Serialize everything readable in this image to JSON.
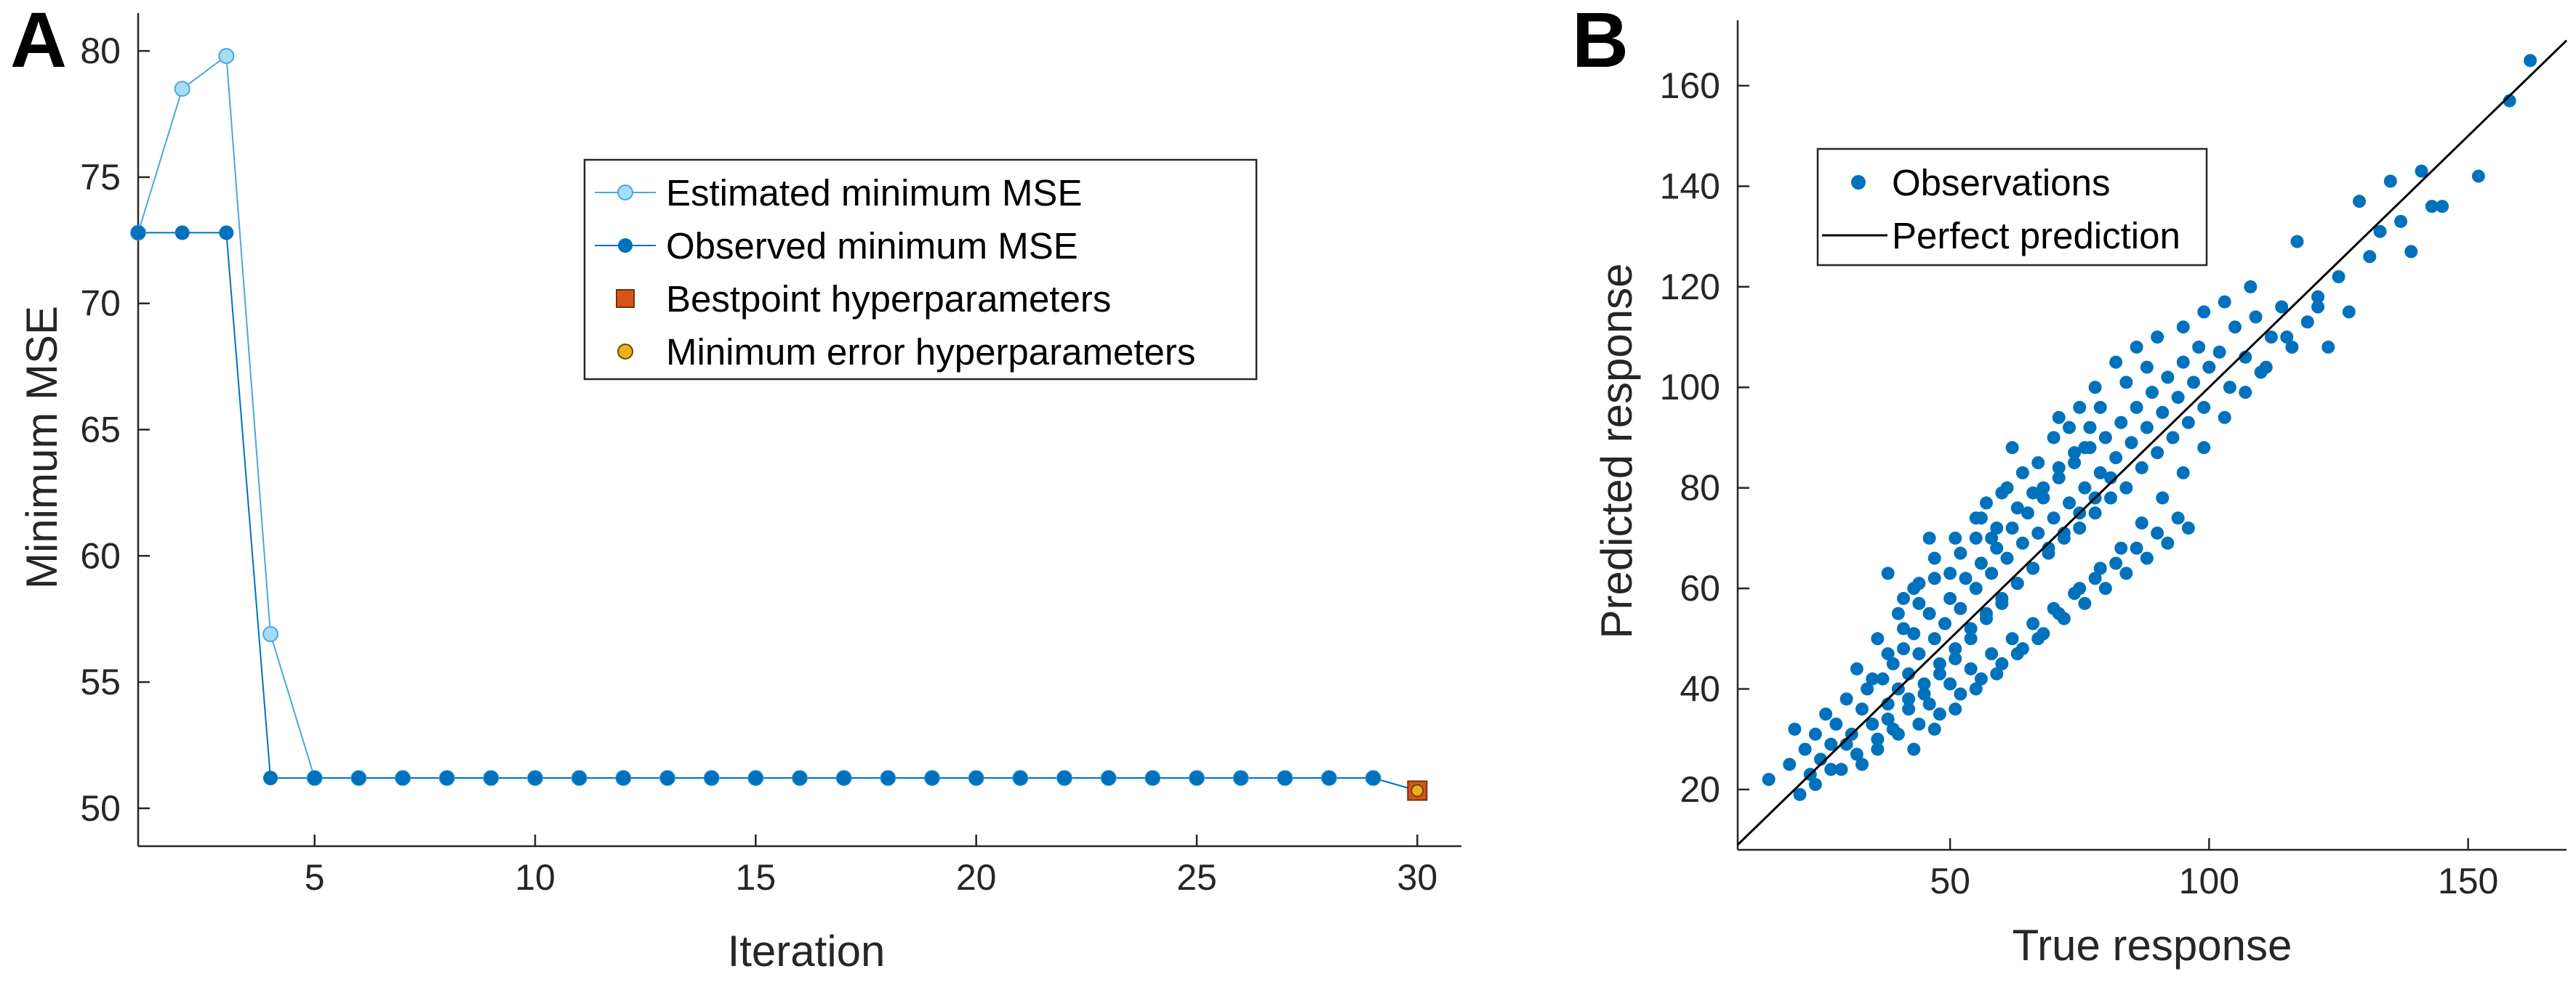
{
  "panels": {
    "a_label": "A",
    "b_label": "B"
  },
  "colors": {
    "estimated": "#a6dcf5",
    "estimated_edge": "#4aa8d8",
    "observed": "#0072bd",
    "bestpoint": "#d95319",
    "min_error": "#edb120",
    "perfect": "#000000"
  },
  "chart_data": [
    {
      "type": "line",
      "xlabel": "Iteration",
      "ylabel": "Minimum MSE",
      "xlim": [
        1,
        31
      ],
      "ylim": [
        48.5,
        81.5
      ],
      "xticks": [
        5,
        10,
        15,
        20,
        25,
        30
      ],
      "yticks": [
        50,
        55,
        60,
        65,
        70,
        75,
        80
      ],
      "grid": false,
      "legend_position": "upper-middle",
      "x": [
        1,
        2,
        3,
        4,
        5,
        6,
        7,
        8,
        9,
        10,
        11,
        12,
        13,
        14,
        15,
        16,
        17,
        18,
        19,
        20,
        21,
        22,
        23,
        24,
        25,
        26,
        27,
        28,
        29,
        30
      ],
      "series": [
        {
          "name": "Estimated minimum MSE",
          "values": [
            72.8,
            78.5,
            79.8,
            56.9,
            51.2,
            51.2,
            51.2,
            51.2,
            51.2,
            51.2,
            51.2,
            51.2,
            51.2,
            51.2,
            51.2,
            51.2,
            51.2,
            51.2,
            51.2,
            51.2,
            51.2,
            51.2,
            51.2,
            51.2,
            51.2,
            51.2,
            51.2,
            51.2,
            51.2,
            50.7
          ]
        },
        {
          "name": "Observed minimum MSE",
          "values": [
            72.8,
            72.8,
            72.8,
            51.2,
            51.2,
            51.2,
            51.2,
            51.2,
            51.2,
            51.2,
            51.2,
            51.2,
            51.2,
            51.2,
            51.2,
            51.2,
            51.2,
            51.2,
            51.2,
            51.2,
            51.2,
            51.2,
            51.2,
            51.2,
            51.2,
            51.2,
            51.2,
            51.2,
            51.2,
            50.7
          ]
        }
      ],
      "markers": [
        {
          "name": "Bestpoint hyperparameters",
          "x": 30,
          "y": 50.7
        },
        {
          "name": "Minimum error hyperparameters",
          "x": 30,
          "y": 50.7
        }
      ]
    },
    {
      "type": "scatter",
      "xlabel": "True response",
      "ylabel": "Predicted response",
      "xlim": [
        9,
        169
      ],
      "ylim": [
        8,
        173
      ],
      "xticks": [
        50,
        100,
        150
      ],
      "yticks": [
        20,
        40,
        60,
        80,
        100,
        120,
        140,
        160
      ],
      "grid": false,
      "legend_position": "upper-left",
      "series": [
        {
          "name": "Observations",
          "points": [
            [
              15,
              22
            ],
            [
              19,
              25
            ],
            [
              20,
              32
            ],
            [
              21,
              19
            ],
            [
              22,
              28
            ],
            [
              23,
              23
            ],
            [
              24,
              31
            ],
            [
              25,
              26
            ],
            [
              26,
              35
            ],
            [
              27,
              29
            ],
            [
              28,
              33
            ],
            [
              29,
              24
            ],
            [
              30,
              38
            ],
            [
              31,
              31
            ],
            [
              32,
              27
            ],
            [
              33,
              36
            ],
            [
              34,
              40
            ],
            [
              35,
              33
            ],
            [
              36,
              30
            ],
            [
              37,
              42
            ],
            [
              38,
              37
            ],
            [
              39,
              45
            ],
            [
              40,
              40
            ],
            [
              41,
              48
            ],
            [
              42,
              43
            ],
            [
              43,
              51
            ],
            [
              44,
              47
            ],
            [
              45,
              41
            ],
            [
              46,
              55
            ],
            [
              47,
              50
            ],
            [
              48,
              45
            ],
            [
              49,
              53
            ],
            [
              50,
              58
            ],
            [
              51,
              48
            ],
            [
              52,
              56
            ],
            [
              53,
              62
            ],
            [
              54,
              52
            ],
            [
              55,
              60
            ],
            [
              56,
              65
            ],
            [
              57,
              55
            ],
            [
              58,
              63
            ],
            [
              59,
              68
            ],
            [
              60,
              58
            ],
            [
              61,
              66
            ],
            [
              62,
              72
            ],
            [
              63,
              61
            ],
            [
              64,
              69
            ],
            [
              65,
              75
            ],
            [
              66,
              64
            ],
            [
              67,
              71
            ],
            [
              68,
              78
            ],
            [
              69,
              67
            ],
            [
              70,
              74
            ],
            [
              71,
              82
            ],
            [
              72,
              70
            ],
            [
              73,
              77
            ],
            [
              74,
              85
            ],
            [
              75,
              72
            ],
            [
              76,
              80
            ],
            [
              77,
              88
            ],
            [
              78,
              75
            ],
            [
              79,
              83
            ],
            [
              80,
              90
            ],
            [
              81,
              78
            ],
            [
              82,
              86
            ],
            [
              83,
              93
            ],
            [
              84,
              80
            ],
            [
              85,
              89
            ],
            [
              86,
              96
            ],
            [
              87,
              84
            ],
            [
              88,
              92
            ],
            [
              89,
              99
            ],
            [
              90,
              87
            ],
            [
              91,
              95
            ],
            [
              92,
              102
            ],
            [
              93,
              90
            ],
            [
              94,
              98
            ],
            [
              95,
              105
            ],
            [
              96,
              93
            ],
            [
              97,
              101
            ],
            [
              98,
              108
            ],
            [
              99,
              96
            ],
            [
              100,
              104
            ],
            [
              102,
              107
            ],
            [
              104,
              100
            ],
            [
              105,
              112
            ],
            [
              107,
              106
            ],
            [
              109,
              114
            ],
            [
              110,
              103
            ],
            [
              112,
              110
            ],
            [
              114,
              116
            ],
            [
              116,
              108
            ],
            [
              117,
              129
            ],
            [
              119,
              113
            ],
            [
              121,
              118
            ],
            [
              123,
              108
            ],
            [
              125,
              122
            ],
            [
              127,
              115
            ],
            [
              129,
              137
            ],
            [
              131,
              126
            ],
            [
              133,
              131
            ],
            [
              135,
              141
            ],
            [
              137,
              133
            ],
            [
              139,
              127
            ],
            [
              141,
              143
            ],
            [
              143,
              136
            ],
            [
              145,
              136
            ],
            [
              152,
              142
            ],
            [
              158,
              157
            ],
            [
              162,
              165
            ],
            [
              38,
              63
            ],
            [
              41,
              58
            ],
            [
              44,
              61
            ],
            [
              47,
              66
            ],
            [
              50,
              63
            ],
            [
              46,
              70
            ],
            [
              55,
              74
            ],
            [
              58,
              70
            ],
            [
              61,
              80
            ],
            [
              57,
              77
            ],
            [
              64,
              83
            ],
            [
              62,
              88
            ],
            [
              67,
              85
            ],
            [
              70,
              90
            ],
            [
              66,
              79
            ],
            [
              73,
              92
            ],
            [
              76,
              88
            ],
            [
              79,
              96
            ],
            [
              82,
              105
            ],
            [
              84,
              101
            ],
            [
              75,
              96
            ],
            [
              71,
              94
            ],
            [
              78,
              100
            ],
            [
              86,
              108
            ],
            [
              88,
              104
            ],
            [
              90,
              110
            ],
            [
              95,
              112
            ],
            [
              99,
              115
            ],
            [
              103,
              117
            ],
            [
              108,
              120
            ],
            [
              32,
              44
            ],
            [
              35,
              42
            ],
            [
              38,
              47
            ],
            [
              41,
              52
            ],
            [
              44,
              57
            ],
            [
              36,
              50
            ],
            [
              40,
              55
            ],
            [
              43,
              60
            ],
            [
              47,
              62
            ],
            [
              52,
              67
            ],
            [
              55,
              70
            ],
            [
              59,
              72
            ],
            [
              63,
              76
            ],
            [
              51,
              70
            ],
            [
              56,
              74
            ],
            [
              60,
              79
            ],
            [
              68,
              80
            ],
            [
              71,
              84
            ],
            [
              74,
              87
            ],
            [
              77,
              92
            ],
            [
              38,
              34
            ],
            [
              40,
              31
            ],
            [
              42,
              38
            ],
            [
              44,
              33
            ],
            [
              46,
              37
            ],
            [
              48,
              35
            ],
            [
              50,
              41
            ],
            [
              52,
              39
            ],
            [
              54,
              44
            ],
            [
              56,
              42
            ],
            [
              58,
              47
            ],
            [
              60,
              45
            ],
            [
              62,
              50
            ],
            [
              64,
              48
            ],
            [
              66,
              53
            ],
            [
              68,
              51
            ],
            [
              70,
              56
            ],
            [
              72,
              54
            ],
            [
              74,
              59
            ],
            [
              76,
              57
            ],
            [
              78,
              62
            ],
            [
              80,
              60
            ],
            [
              82,
              65
            ],
            [
              84,
              63
            ],
            [
              86,
              68
            ],
            [
              88,
              66
            ],
            [
              90,
              71
            ],
            [
              92,
              69
            ],
            [
              94,
              74
            ],
            [
              96,
              72
            ],
            [
              43,
              28
            ],
            [
              47,
              32
            ],
            [
              51,
              36
            ],
            [
              55,
              40
            ],
            [
              59,
              43
            ],
            [
              63,
              47
            ],
            [
              67,
              50
            ],
            [
              71,
              55
            ],
            [
              75,
              60
            ],
            [
              79,
              64
            ],
            [
              83,
              68
            ],
            [
              87,
              73
            ],
            [
              91,
              78
            ],
            [
              95,
              83
            ],
            [
              99,
              88
            ],
            [
              103,
              94
            ],
            [
              107,
              99
            ],
            [
              111,
              104
            ],
            [
              115,
              110
            ],
            [
              121,
              116
            ],
            [
              24,
              21
            ],
            [
              27,
              24
            ],
            [
              30,
              29
            ],
            [
              33,
              25
            ],
            [
              36,
              28
            ],
            [
              39,
              32
            ],
            [
              42,
              36
            ],
            [
              45,
              39
            ],
            [
              48,
              43
            ],
            [
              51,
              46
            ],
            [
              54,
              50
            ],
            [
              57,
              54
            ],
            [
              60,
              57
            ],
            [
              63,
              61
            ],
            [
              66,
              64
            ],
            [
              69,
              68
            ],
            [
              72,
              71
            ],
            [
              75,
              75
            ],
            [
              78,
              78
            ],
            [
              81,
              82
            ]
          ]
        }
      ],
      "reference_line": {
        "name": "Perfect prediction",
        "from": [
          9,
          9
        ],
        "to": [
          169,
          169
        ]
      }
    }
  ]
}
